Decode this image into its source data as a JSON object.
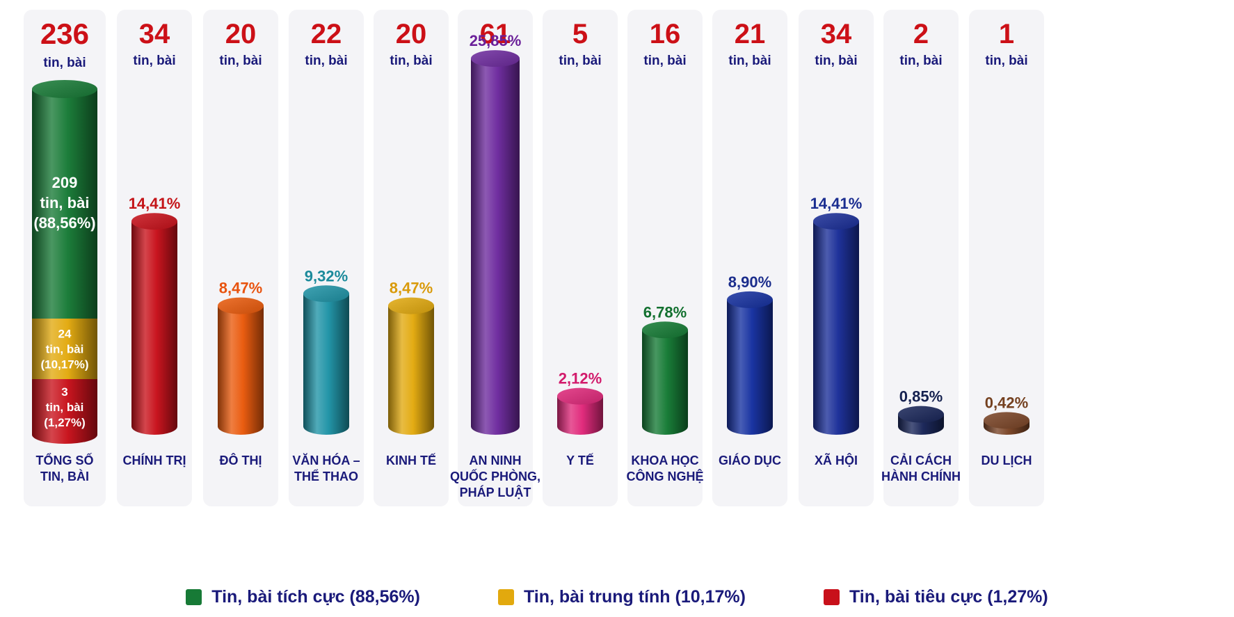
{
  "chart_data": {
    "type": "bar",
    "subtype": "3d-cylinder",
    "unit_label": "tin, bài",
    "categories": [
      "TỔNG SỐ\nTIN, BÀI",
      "CHÍNH TRỊ",
      "ĐÔ THỊ",
      "VĂN HÓA –\nTHỂ THAO",
      "KINH TẾ",
      "AN NINH\nQUỐC PHÒNG,\nPHÁP LUẬT",
      "Y TẾ",
      "KHOA HỌC\nCÔNG NGHỆ",
      "GIÁO DỤC",
      "XÃ HỘI",
      "CẢI CÁCH\nHÀNH CHÍNH",
      "DU LỊCH"
    ],
    "values": [
      236,
      34,
      20,
      22,
      20,
      61,
      5,
      16,
      21,
      34,
      2,
      1
    ],
    "percent_labels": [
      "",
      "14,41%",
      "8,47%",
      "9,32%",
      "8,47%",
      "25,85%",
      "2,12%",
      "6,78%",
      "8,90%",
      "14,41%",
      "0,85%",
      "0,42%"
    ],
    "colors": [
      "",
      "#c8101a",
      "#ea5a0c",
      "#1e93a6",
      "#e2a90e",
      "#6d2a9e",
      "#e0287a",
      "#147a34",
      "#1530a0",
      "#1a2e98",
      "#182558",
      "#7a4426"
    ],
    "percent_colors": [
      "",
      "#c41418",
      "#e8530e",
      "#1b8a9b",
      "#d99a0a",
      "#6a1f99",
      "#d21a6b",
      "#12702f",
      "#1b2d8c",
      "#1a2d90",
      "#15214f",
      "#74401f"
    ],
    "stacked_total": {
      "segments": [
        {
          "value": 3,
          "label_count": "3",
          "label_pct": "(1,27%)",
          "color": "#c8101a"
        },
        {
          "value": 24,
          "label_count": "24",
          "label_pct": "(10,17%)",
          "color": "#e2a90e"
        },
        {
          "value": 209,
          "label_count": "209",
          "label_pct": "(88,56%)",
          "color": "#177a36"
        }
      ]
    },
    "number_color": "#cc1017",
    "unit_color": "#1a1a7a",
    "category_color": "#1a1a7a",
    "legend_position": "bottom",
    "grid": false
  },
  "legend": [
    {
      "label": "Tin, bài tích cực (88,56%)",
      "color": "#177a36"
    },
    {
      "label": "Tin, bài trung tính (10,17%)",
      "color": "#e2a90e"
    },
    {
      "label": "Tin, bài tiêu cực (1,27%)",
      "color": "#c8101a"
    }
  ]
}
